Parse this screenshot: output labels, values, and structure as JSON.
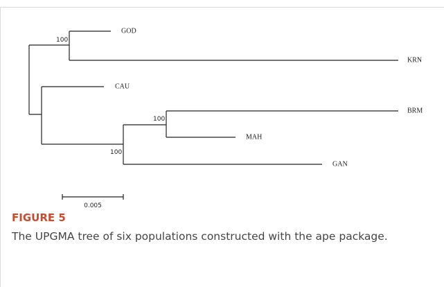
{
  "tree": {
    "tips": [
      "GOD",
      "KRN",
      "CAU",
      "BRM",
      "MAH",
      "GAN"
    ],
    "support": [
      "100",
      "100",
      "100"
    ],
    "scale_bar": "0.005"
  },
  "caption": {
    "label": "FIGURE 5",
    "text": "The UPGMA tree of six populations constructed with the ape package."
  }
}
